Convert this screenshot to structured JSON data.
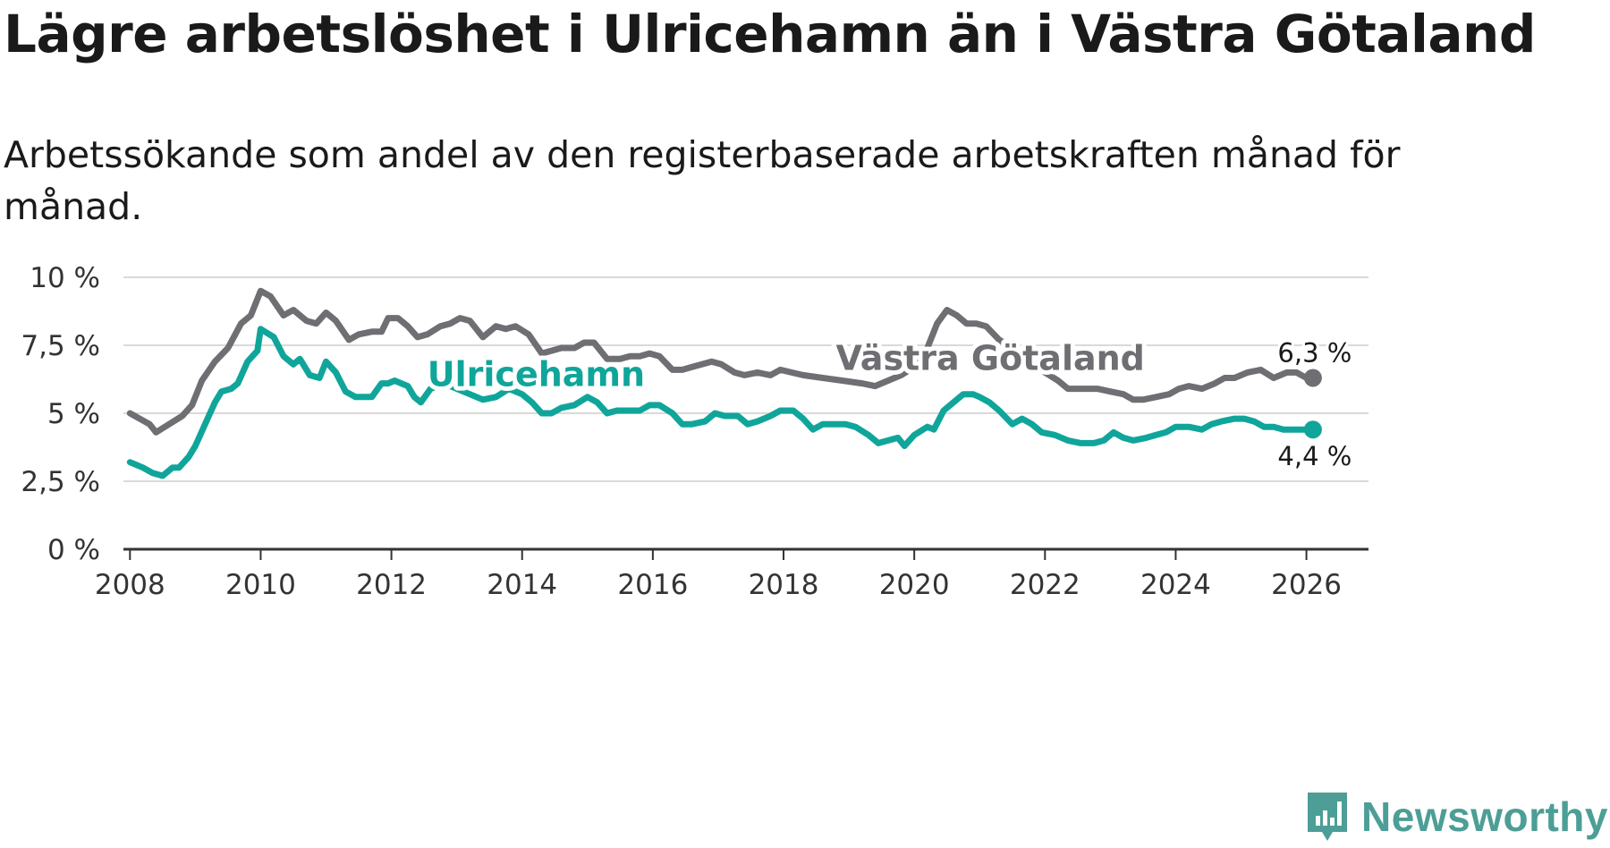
{
  "header": {
    "title": "Lägre arbetslöshet i Ulricehamn än i Västra Götaland",
    "subtitle": "Arbetssökande som andel av den registerbaserade arbetskraften månad för månad."
  },
  "brand": {
    "name": "Newsworthy"
  },
  "chart_data": {
    "type": "line",
    "title": "Lägre arbetslöshet i Ulricehamn än i Västra Götaland",
    "subtitle": "Arbetssökande som andel av den registerbaserade arbetskraften månad för månad.",
    "xlabel": "",
    "ylabel": "",
    "xlim": [
      2007.9,
      2026.95
    ],
    "ylim": [
      0,
      10
    ],
    "y_ticks": [
      0,
      2.5,
      5,
      7.5,
      10
    ],
    "y_tick_labels": [
      "0 %",
      "2,5 %",
      "5 %",
      "7,5 %",
      "10 %"
    ],
    "x_ticks": [
      2008,
      2010,
      2012,
      2014,
      2016,
      2018,
      2020,
      2022,
      2024,
      2026
    ],
    "x_tick_labels": [
      "2008",
      "2010",
      "2012",
      "2014",
      "2016",
      "2018",
      "2020",
      "2022",
      "2024",
      "2026"
    ],
    "grid": true,
    "legend": "inline labels",
    "series": [
      {
        "name": "Västra Götaland",
        "color": "#6e6e73",
        "end_label": "6,3 %",
        "points": [
          [
            2008.0,
            5.0
          ],
          [
            2008.3,
            4.6
          ],
          [
            2008.4,
            4.3
          ],
          [
            2008.6,
            4.6
          ],
          [
            2008.8,
            4.9
          ],
          [
            2008.95,
            5.3
          ],
          [
            2009.1,
            6.2
          ],
          [
            2009.3,
            6.9
          ],
          [
            2009.5,
            7.4
          ],
          [
            2009.7,
            8.3
          ],
          [
            2009.85,
            8.6
          ],
          [
            2010.0,
            9.5
          ],
          [
            2010.15,
            9.3
          ],
          [
            2010.35,
            8.6
          ],
          [
            2010.5,
            8.8
          ],
          [
            2010.7,
            8.4
          ],
          [
            2010.85,
            8.3
          ],
          [
            2011.0,
            8.7
          ],
          [
            2011.15,
            8.4
          ],
          [
            2011.35,
            7.7
          ],
          [
            2011.5,
            7.9
          ],
          [
            2011.7,
            8.0
          ],
          [
            2011.85,
            8.0
          ],
          [
            2011.95,
            8.5
          ],
          [
            2012.1,
            8.5
          ],
          [
            2012.25,
            8.2
          ],
          [
            2012.4,
            7.8
          ],
          [
            2012.55,
            7.9
          ],
          [
            2012.75,
            8.2
          ],
          [
            2012.9,
            8.3
          ],
          [
            2013.05,
            8.5
          ],
          [
            2013.2,
            8.4
          ],
          [
            2013.4,
            7.8
          ],
          [
            2013.6,
            8.2
          ],
          [
            2013.75,
            8.1
          ],
          [
            2013.9,
            8.2
          ],
          [
            2014.1,
            7.9
          ],
          [
            2014.3,
            7.2
          ],
          [
            2014.45,
            7.3
          ],
          [
            2014.6,
            7.4
          ],
          [
            2014.8,
            7.4
          ],
          [
            2014.95,
            7.6
          ],
          [
            2015.1,
            7.6
          ],
          [
            2015.3,
            7.0
          ],
          [
            2015.5,
            7.0
          ],
          [
            2015.65,
            7.1
          ],
          [
            2015.8,
            7.1
          ],
          [
            2015.95,
            7.2
          ],
          [
            2016.1,
            7.1
          ],
          [
            2016.3,
            6.6
          ],
          [
            2016.45,
            6.6
          ],
          [
            2016.6,
            6.7
          ],
          [
            2016.75,
            6.8
          ],
          [
            2016.9,
            6.9
          ],
          [
            2017.05,
            6.8
          ],
          [
            2017.25,
            6.5
          ],
          [
            2017.4,
            6.4
          ],
          [
            2017.6,
            6.5
          ],
          [
            2017.8,
            6.4
          ],
          [
            2017.95,
            6.6
          ],
          [
            2018.3,
            6.4
          ],
          [
            2018.6,
            6.3
          ],
          [
            2018.9,
            6.2
          ],
          [
            2019.2,
            6.1
          ],
          [
            2019.4,
            6.0
          ],
          [
            2019.6,
            6.2
          ],
          [
            2019.8,
            6.4
          ],
          [
            2020.0,
            6.7
          ],
          [
            2020.2,
            7.4
          ],
          [
            2020.35,
            8.3
          ],
          [
            2020.5,
            8.8
          ],
          [
            2020.65,
            8.6
          ],
          [
            2020.8,
            8.3
          ],
          [
            2020.95,
            8.3
          ],
          [
            2021.1,
            8.2
          ],
          [
            2021.3,
            7.7
          ],
          [
            2021.5,
            7.4
          ],
          [
            2021.7,
            7.2
          ],
          [
            2021.85,
            7.0
          ],
          [
            2022.0,
            6.5
          ],
          [
            2022.2,
            6.2
          ],
          [
            2022.35,
            5.9
          ],
          [
            2022.6,
            5.9
          ],
          [
            2022.8,
            5.9
          ],
          [
            2023.0,
            5.8
          ],
          [
            2023.2,
            5.7
          ],
          [
            2023.35,
            5.5
          ],
          [
            2023.5,
            5.5
          ],
          [
            2023.7,
            5.6
          ],
          [
            2023.9,
            5.7
          ],
          [
            2024.05,
            5.9
          ],
          [
            2024.2,
            6.0
          ],
          [
            2024.4,
            5.9
          ],
          [
            2024.6,
            6.1
          ],
          [
            2024.75,
            6.3
          ],
          [
            2024.9,
            6.3
          ],
          [
            2025.1,
            6.5
          ],
          [
            2025.3,
            6.6
          ],
          [
            2025.5,
            6.3
          ],
          [
            2025.7,
            6.5
          ],
          [
            2025.85,
            6.5
          ],
          [
            2026.0,
            6.3
          ],
          [
            2026.1,
            6.3
          ]
        ]
      },
      {
        "name": "Ulricehamn",
        "color": "#10a59a",
        "end_label": "4,4 %",
        "points": [
          [
            2008.0,
            3.2
          ],
          [
            2008.2,
            3.0
          ],
          [
            2008.35,
            2.8
          ],
          [
            2008.5,
            2.7
          ],
          [
            2008.65,
            3.0
          ],
          [
            2008.75,
            3.0
          ],
          [
            2008.9,
            3.4
          ],
          [
            2009.0,
            3.8
          ],
          [
            2009.15,
            4.6
          ],
          [
            2009.3,
            5.4
          ],
          [
            2009.4,
            5.8
          ],
          [
            2009.55,
            5.9
          ],
          [
            2009.65,
            6.1
          ],
          [
            2009.8,
            6.9
          ],
          [
            2009.95,
            7.3
          ],
          [
            2010.0,
            8.1
          ],
          [
            2010.2,
            7.8
          ],
          [
            2010.35,
            7.1
          ],
          [
            2010.5,
            6.8
          ],
          [
            2010.6,
            7.0
          ],
          [
            2010.75,
            6.4
          ],
          [
            2010.9,
            6.3
          ],
          [
            2011.0,
            6.9
          ],
          [
            2011.15,
            6.5
          ],
          [
            2011.3,
            5.8
          ],
          [
            2011.45,
            5.6
          ],
          [
            2011.7,
            5.6
          ],
          [
            2011.85,
            6.1
          ],
          [
            2011.95,
            6.1
          ],
          [
            2012.05,
            6.2
          ],
          [
            2012.25,
            6.0
          ],
          [
            2012.35,
            5.6
          ],
          [
            2012.45,
            5.4
          ],
          [
            2012.6,
            5.9
          ],
          [
            2012.8,
            6.1
          ],
          [
            2013.0,
            5.9
          ],
          [
            2013.2,
            5.7
          ],
          [
            2013.4,
            5.5
          ],
          [
            2013.6,
            5.6
          ],
          [
            2013.8,
            5.9
          ],
          [
            2014.0,
            5.7
          ],
          [
            2014.15,
            5.4
          ],
          [
            2014.3,
            5.0
          ],
          [
            2014.45,
            5.0
          ],
          [
            2014.6,
            5.2
          ],
          [
            2014.8,
            5.3
          ],
          [
            2015.0,
            5.6
          ],
          [
            2015.15,
            5.4
          ],
          [
            2015.3,
            5.0
          ],
          [
            2015.45,
            5.1
          ],
          [
            2015.6,
            5.1
          ],
          [
            2015.8,
            5.1
          ],
          [
            2015.95,
            5.3
          ],
          [
            2016.1,
            5.3
          ],
          [
            2016.3,
            5.0
          ],
          [
            2016.45,
            4.6
          ],
          [
            2016.6,
            4.6
          ],
          [
            2016.8,
            4.7
          ],
          [
            2016.95,
            5.0
          ],
          [
            2017.1,
            4.9
          ],
          [
            2017.3,
            4.9
          ],
          [
            2017.45,
            4.6
          ],
          [
            2017.6,
            4.7
          ],
          [
            2017.8,
            4.9
          ],
          [
            2017.95,
            5.1
          ],
          [
            2018.15,
            5.1
          ],
          [
            2018.3,
            4.8
          ],
          [
            2018.45,
            4.4
          ],
          [
            2018.6,
            4.6
          ],
          [
            2018.8,
            4.6
          ],
          [
            2018.95,
            4.6
          ],
          [
            2019.1,
            4.5
          ],
          [
            2019.3,
            4.2
          ],
          [
            2019.45,
            3.9
          ],
          [
            2019.6,
            4.0
          ],
          [
            2019.75,
            4.1
          ],
          [
            2019.85,
            3.8
          ],
          [
            2020.0,
            4.2
          ],
          [
            2020.2,
            4.5
          ],
          [
            2020.3,
            4.4
          ],
          [
            2020.45,
            5.1
          ],
          [
            2020.6,
            5.4
          ],
          [
            2020.75,
            5.7
          ],
          [
            2020.9,
            5.7
          ],
          [
            2021.0,
            5.6
          ],
          [
            2021.15,
            5.4
          ],
          [
            2021.3,
            5.1
          ],
          [
            2021.5,
            4.6
          ],
          [
            2021.65,
            4.8
          ],
          [
            2021.8,
            4.6
          ],
          [
            2021.95,
            4.3
          ],
          [
            2022.15,
            4.2
          ],
          [
            2022.35,
            4.0
          ],
          [
            2022.55,
            3.9
          ],
          [
            2022.75,
            3.9
          ],
          [
            2022.9,
            4.0
          ],
          [
            2023.05,
            4.3
          ],
          [
            2023.2,
            4.1
          ],
          [
            2023.35,
            4.0
          ],
          [
            2023.55,
            4.1
          ],
          [
            2023.7,
            4.2
          ],
          [
            2023.85,
            4.3
          ],
          [
            2024.0,
            4.5
          ],
          [
            2024.2,
            4.5
          ],
          [
            2024.4,
            4.4
          ],
          [
            2024.55,
            4.6
          ],
          [
            2024.7,
            4.7
          ],
          [
            2024.9,
            4.8
          ],
          [
            2025.05,
            4.8
          ],
          [
            2025.2,
            4.7
          ],
          [
            2025.35,
            4.5
          ],
          [
            2025.5,
            4.5
          ],
          [
            2025.65,
            4.4
          ],
          [
            2025.8,
            4.4
          ],
          [
            2025.95,
            4.4
          ],
          [
            2026.1,
            4.4
          ]
        ]
      }
    ],
    "series_labels": [
      {
        "series": "Västra Götaland",
        "text": "Västra Götaland",
        "at": [
          2018.8,
          6.6
        ]
      },
      {
        "series": "Ulricehamn",
        "text": "Ulricehamn",
        "at": [
          2012.55,
          6.0
        ]
      }
    ]
  }
}
